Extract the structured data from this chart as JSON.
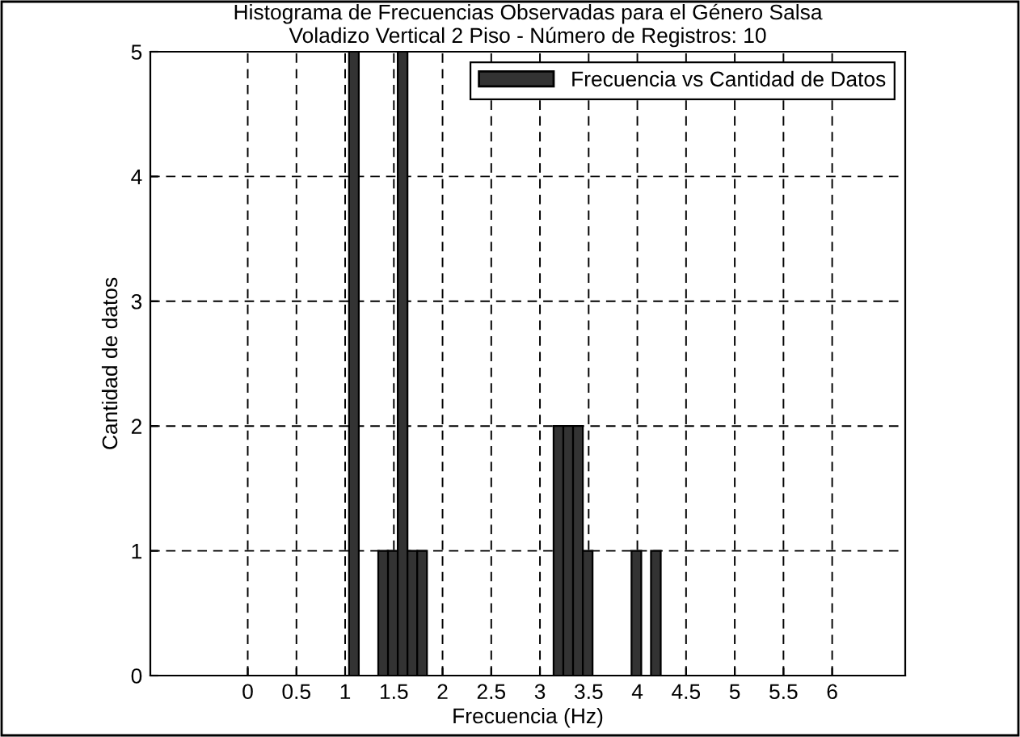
{
  "chart_data": {
    "type": "histogram",
    "title": "Histograma de Frecuencias Observadas para el Género Salsa\nVoladizo Vertical 2 Piso - Número de Registros: 10",
    "xlabel": "Frecuencia (Hz)",
    "ylabel": "Cantidad de datos",
    "bins": [
      1.04,
      1.14,
      1.24,
      1.34,
      1.44,
      1.54,
      1.64,
      1.74,
      1.84,
      1.94,
      2.04,
      2.14,
      2.24,
      2.34,
      2.44,
      2.54,
      2.64,
      2.74,
      2.84,
      2.94,
      3.04,
      3.14,
      3.24,
      3.34,
      3.44,
      3.54,
      3.64,
      3.74,
      3.84,
      3.94,
      4.04,
      4.14,
      4.24
    ],
    "series": [
      {
        "name": "Frecuencia vs Cantidad de Datos",
        "color": "#333333",
        "values": [
          5,
          0,
          0,
          1,
          1,
          5,
          1,
          1,
          0,
          0,
          0,
          0,
          0,
          0,
          0,
          0,
          0,
          0,
          0,
          0,
          0,
          2,
          2,
          2,
          1,
          0,
          0,
          0,
          0,
          1,
          0,
          1
        ]
      }
    ],
    "xlim": [
      -1,
      6.75
    ],
    "ylim": [
      0,
      5
    ],
    "xticks": [
      0,
      0.5,
      1,
      1.5,
      2,
      2.5,
      3,
      3.5,
      4,
      4.5,
      5,
      5.5,
      6
    ],
    "yticks": [
      0,
      1,
      2,
      3,
      4,
      5
    ],
    "grid": true,
    "legend": "top right",
    "line_style": "dashed"
  }
}
